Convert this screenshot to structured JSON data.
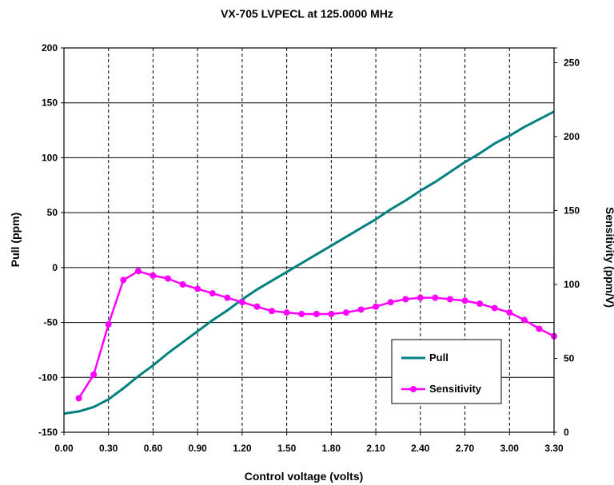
{
  "chart_data": {
    "type": "line",
    "title": "VX-705  LVPECL at 125.0000 MHz",
    "xlabel": "Control voltage (volts)",
    "ylabel_left": "Pull (ppm)",
    "ylabel_right": "Sensitivity (ppm/V)",
    "xlim": [
      0,
      3.3
    ],
    "ylim_left": [
      -150,
      200
    ],
    "ylim_right": [
      0,
      260
    ],
    "x_ticks": [
      "0.00",
      "0.30",
      "0.60",
      "0.90",
      "1.20",
      "1.50",
      "1.80",
      "2.10",
      "2.40",
      "2.70",
      "3.00",
      "3.30"
    ],
    "y_left_ticks": [
      "200",
      "150",
      "100",
      "50",
      "0",
      "-50",
      "-100",
      "-150"
    ],
    "y_right_ticks": [
      "250",
      "200",
      "150",
      "100",
      "50",
      "0"
    ],
    "grid": true,
    "legend_position": "bottom-right",
    "series": [
      {
        "name": "Pull",
        "axis": "left",
        "color": "#008080",
        "markers": false,
        "x": [
          0.0,
          0.1,
          0.2,
          0.3,
          0.4,
          0.5,
          0.6,
          0.7,
          0.8,
          0.9,
          1.0,
          1.1,
          1.2,
          1.3,
          1.4,
          1.5,
          1.6,
          1.7,
          1.8,
          1.9,
          2.0,
          2.1,
          2.2,
          2.3,
          2.4,
          2.5,
          2.6,
          2.7,
          2.8,
          2.9,
          3.0,
          3.1,
          3.2,
          3.3
        ],
        "values": [
          -133,
          -131,
          -127,
          -120,
          -110,
          -99,
          -89,
          -78,
          -68,
          -58,
          -48,
          -39,
          -29,
          -20,
          -12,
          -4,
          4,
          12,
          20,
          28,
          36,
          44,
          53,
          61,
          70,
          78,
          87,
          96,
          104,
          113,
          120,
          128,
          135,
          142
        ]
      },
      {
        "name": "Sensitivity",
        "axis": "right",
        "color": "#ff00ff",
        "markers": true,
        "x": [
          0.1,
          0.2,
          0.3,
          0.4,
          0.5,
          0.6,
          0.7,
          0.8,
          0.9,
          1.0,
          1.1,
          1.2,
          1.3,
          1.4,
          1.5,
          1.6,
          1.7,
          1.8,
          1.9,
          2.0,
          2.1,
          2.2,
          2.3,
          2.4,
          2.5,
          2.6,
          2.7,
          2.8,
          2.9,
          3.0,
          3.1,
          3.2,
          3.3
        ],
        "values": [
          23,
          39,
          73,
          103,
          109,
          106,
          104,
          100,
          97,
          94,
          91,
          88,
          85,
          82,
          81,
          80,
          80,
          80,
          81,
          83,
          85,
          88,
          90,
          91,
          91,
          90,
          89,
          87,
          84,
          81,
          76,
          70,
          65
        ]
      }
    ]
  }
}
